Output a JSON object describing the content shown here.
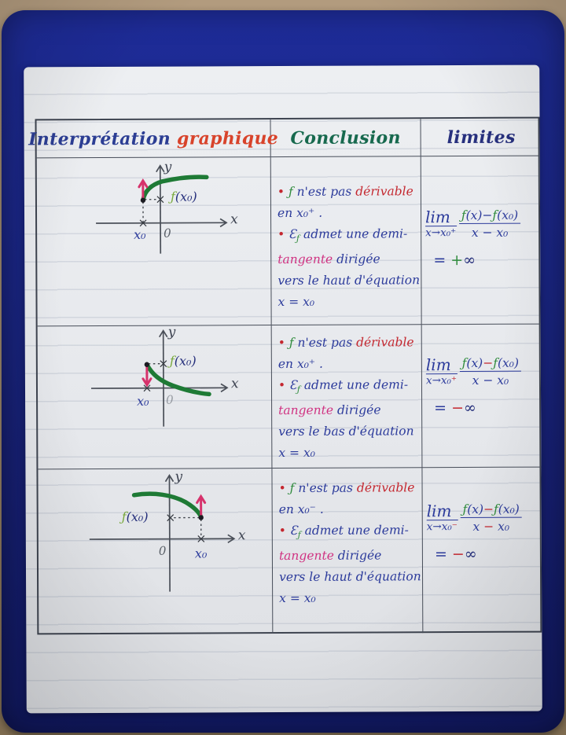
{
  "ink_colors": {
    "blue": "#2b3a9b",
    "navy": "#232d7a",
    "red": "#c4272f",
    "green": "#2f8b3c",
    "pink": "#d03382",
    "orange": "#d8432b",
    "curve_green": "#1e7a35",
    "arrow_pink": "#d6336c"
  },
  "header": {
    "title_part1": "Interprétation",
    "title_part2": "graphique",
    "conclusion": "Conclusion",
    "limites": "limites"
  },
  "rows": [
    {
      "graph": {
        "y": "y",
        "x": "x",
        "x0": "x₀",
        "zero": "0",
        "fx0": [
          {
            "t": "ƒ",
            "c": "green-light"
          },
          {
            "t": "(x₀)",
            "c": "navy"
          }
        ]
      },
      "conclusion": [
        [
          {
            "t": "• ",
            "c": "red"
          },
          {
            "t": "ƒ",
            "c": "green"
          },
          {
            "t": " n'est pas ",
            "c": "blue"
          },
          {
            "t": "dérivable",
            "c": "red"
          }
        ],
        [
          {
            "t": "en x₀⁺ .",
            "c": "blue"
          }
        ],
        [
          {
            "t": "• ",
            "c": "red"
          },
          {
            "t": "Ɛ",
            "c": "blue"
          },
          {
            "t": "ƒ",
            "c": "green sub"
          },
          {
            "t": " admet une demi-",
            "c": "blue"
          }
        ],
        [
          {
            "t": "tangente",
            "c": "pink"
          },
          {
            "t": " dirigée",
            "c": "blue"
          }
        ],
        [
          {
            "t": "vers le haut d'équation",
            "c": "blue"
          }
        ],
        [
          {
            "t": "x = x₀",
            "c": "blue"
          }
        ]
      ],
      "limit": {
        "lim": "lim",
        "approach": [
          {
            "t": "x→x₀",
            "c": "blue"
          },
          {
            "t": "⁺",
            "c": "blue"
          }
        ],
        "num": [
          {
            "t": "ƒ",
            "c": "green"
          },
          {
            "t": "(x)−",
            "c": "blue"
          },
          {
            "t": "ƒ",
            "c": "green"
          },
          {
            "t": "(x₀)",
            "c": "blue"
          }
        ],
        "den": [
          {
            "t": "x − x₀",
            "c": "blue"
          }
        ],
        "result": [
          {
            "t": "= ",
            "c": "blue"
          },
          {
            "t": "+",
            "c": "green"
          },
          {
            "t": "∞",
            "c": "navy"
          }
        ]
      }
    },
    {
      "graph": {
        "y": "y",
        "x": "x",
        "x0": "x₀",
        "zero": "0",
        "fx0": [
          {
            "t": "ƒ",
            "c": "green-light"
          },
          {
            "t": "(x₀)",
            "c": "navy"
          }
        ]
      },
      "conclusion": [
        [
          {
            "t": "• ",
            "c": "red"
          },
          {
            "t": "ƒ",
            "c": "green"
          },
          {
            "t": " n'est pas ",
            "c": "blue"
          },
          {
            "t": "dérivable",
            "c": "red"
          }
        ],
        [
          {
            "t": "en x₀⁺ .",
            "c": "blue"
          }
        ],
        [
          {
            "t": "• ",
            "c": "red"
          },
          {
            "t": "Ɛ",
            "c": "blue"
          },
          {
            "t": "ƒ",
            "c": "green sub"
          },
          {
            "t": " admet une demi-",
            "c": "blue"
          }
        ],
        [
          {
            "t": "tangente",
            "c": "pink"
          },
          {
            "t": " dirigée",
            "c": "blue"
          }
        ],
        [
          {
            "t": "vers le bas d'équation",
            "c": "blue"
          }
        ],
        [
          {
            "t": "x = x₀",
            "c": "blue"
          }
        ]
      ],
      "limit": {
        "lim": "lim",
        "approach": [
          {
            "t": "x→x₀",
            "c": "blue"
          },
          {
            "t": "⁺",
            "c": "red"
          }
        ],
        "num": [
          {
            "t": "ƒ",
            "c": "green"
          },
          {
            "t": "(x)",
            "c": "blue"
          },
          {
            "t": "−",
            "c": "red"
          },
          {
            "t": "ƒ",
            "c": "green"
          },
          {
            "t": "(x₀)",
            "c": "blue"
          }
        ],
        "den": [
          {
            "t": "x − x₀",
            "c": "blue"
          }
        ],
        "result": [
          {
            "t": "= ",
            "c": "blue"
          },
          {
            "t": "−",
            "c": "red"
          },
          {
            "t": "∞",
            "c": "navy"
          }
        ]
      }
    },
    {
      "graph": {
        "y": "y",
        "x": "x",
        "x0": "x₀",
        "zero": "0",
        "fx0": [
          {
            "t": "ƒ",
            "c": "green-light"
          },
          {
            "t": "(x₀)",
            "c": "navy"
          }
        ]
      },
      "conclusion": [
        [
          {
            "t": "• ",
            "c": "red"
          },
          {
            "t": "ƒ",
            "c": "green"
          },
          {
            "t": " n'est pas ",
            "c": "blue"
          },
          {
            "t": "dérivable",
            "c": "red"
          }
        ],
        [
          {
            "t": "en x₀⁻ .",
            "c": "blue"
          }
        ],
        [
          {
            "t": "• ",
            "c": "red"
          },
          {
            "t": "Ɛ",
            "c": "blue"
          },
          {
            "t": "ƒ",
            "c": "green sub"
          },
          {
            "t": " admet une demi-",
            "c": "blue"
          }
        ],
        [
          {
            "t": "tangente",
            "c": "pink"
          },
          {
            "t": " dirigée",
            "c": "blue"
          }
        ],
        [
          {
            "t": "vers le haut d'équation",
            "c": "blue"
          }
        ],
        [
          {
            "t": "x = x₀",
            "c": "blue"
          }
        ]
      ],
      "limit": {
        "lim": "lim",
        "approach": [
          {
            "t": "x→x₀",
            "c": "blue"
          },
          {
            "t": "⁻",
            "c": "red"
          }
        ],
        "num": [
          {
            "t": "ƒ",
            "c": "green"
          },
          {
            "t": "(x)",
            "c": "blue"
          },
          {
            "t": "−",
            "c": "red"
          },
          {
            "t": "ƒ",
            "c": "green"
          },
          {
            "t": "(x₀)",
            "c": "blue"
          }
        ],
        "den": [
          {
            "t": "x ",
            "c": "blue"
          },
          {
            "t": "−",
            "c": "red"
          },
          {
            "t": " x₀",
            "c": "blue"
          }
        ],
        "result": [
          {
            "t": "= ",
            "c": "blue"
          },
          {
            "t": "−",
            "c": "red"
          },
          {
            "t": "∞",
            "c": "navy"
          }
        ]
      }
    }
  ]
}
